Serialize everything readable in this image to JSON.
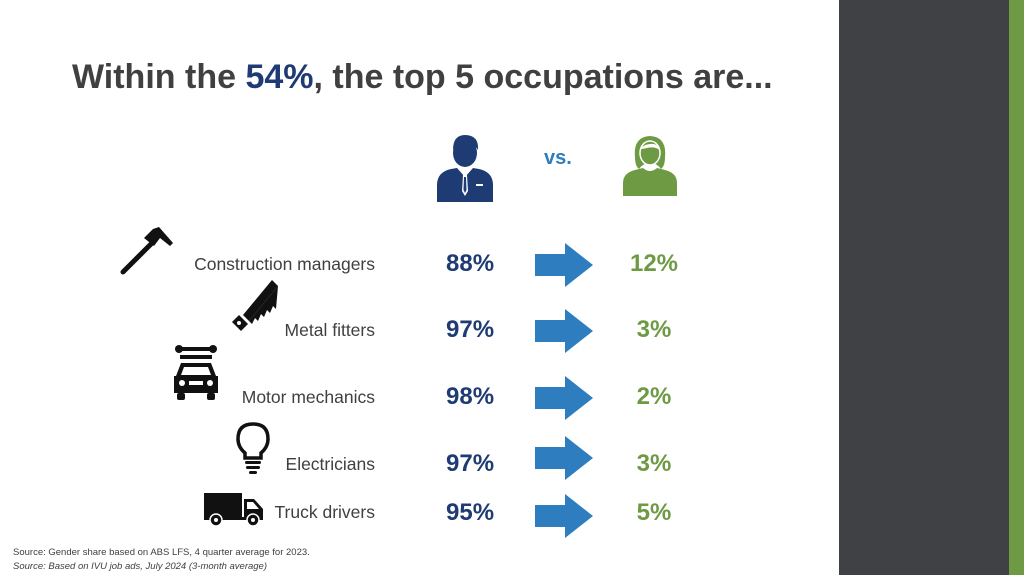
{
  "title": {
    "prefix": "Within the ",
    "highlight": "54%",
    "suffix": ", the top 5 occupations are..."
  },
  "comparison": {
    "vs_label": "vs.",
    "male_icon": "businessman-icon",
    "female_icon": "woman-icon"
  },
  "occupations": [
    {
      "label": "Construction managers",
      "male": "88%",
      "female": "12%",
      "icon": "hammer-icon"
    },
    {
      "label": "Metal fitters",
      "male": "97%",
      "female": "3%",
      "icon": "saw-icon"
    },
    {
      "label": "Motor mechanics",
      "male": "98%",
      "female": "2%",
      "icon": "car-wrench-icon"
    },
    {
      "label": "Electricians",
      "male": "97%",
      "female": "3%",
      "icon": "light-bulb-icon"
    },
    {
      "label": "Truck drivers",
      "male": "95%",
      "female": "5%",
      "icon": "truck-icon"
    }
  ],
  "sources": {
    "line1": "Source: Gender share based on ABS LFS, 4 quarter average for 2023.",
    "line2": "Source: Based on IVU job ads, July 2024 (3-month average)"
  },
  "colors": {
    "male": "#1f3b73",
    "female": "#6e9a44",
    "arrow": "#2e7dbf",
    "text": "#404040",
    "sidebar_dark": "#404145",
    "sidebar_accent": "#6e9a44"
  }
}
